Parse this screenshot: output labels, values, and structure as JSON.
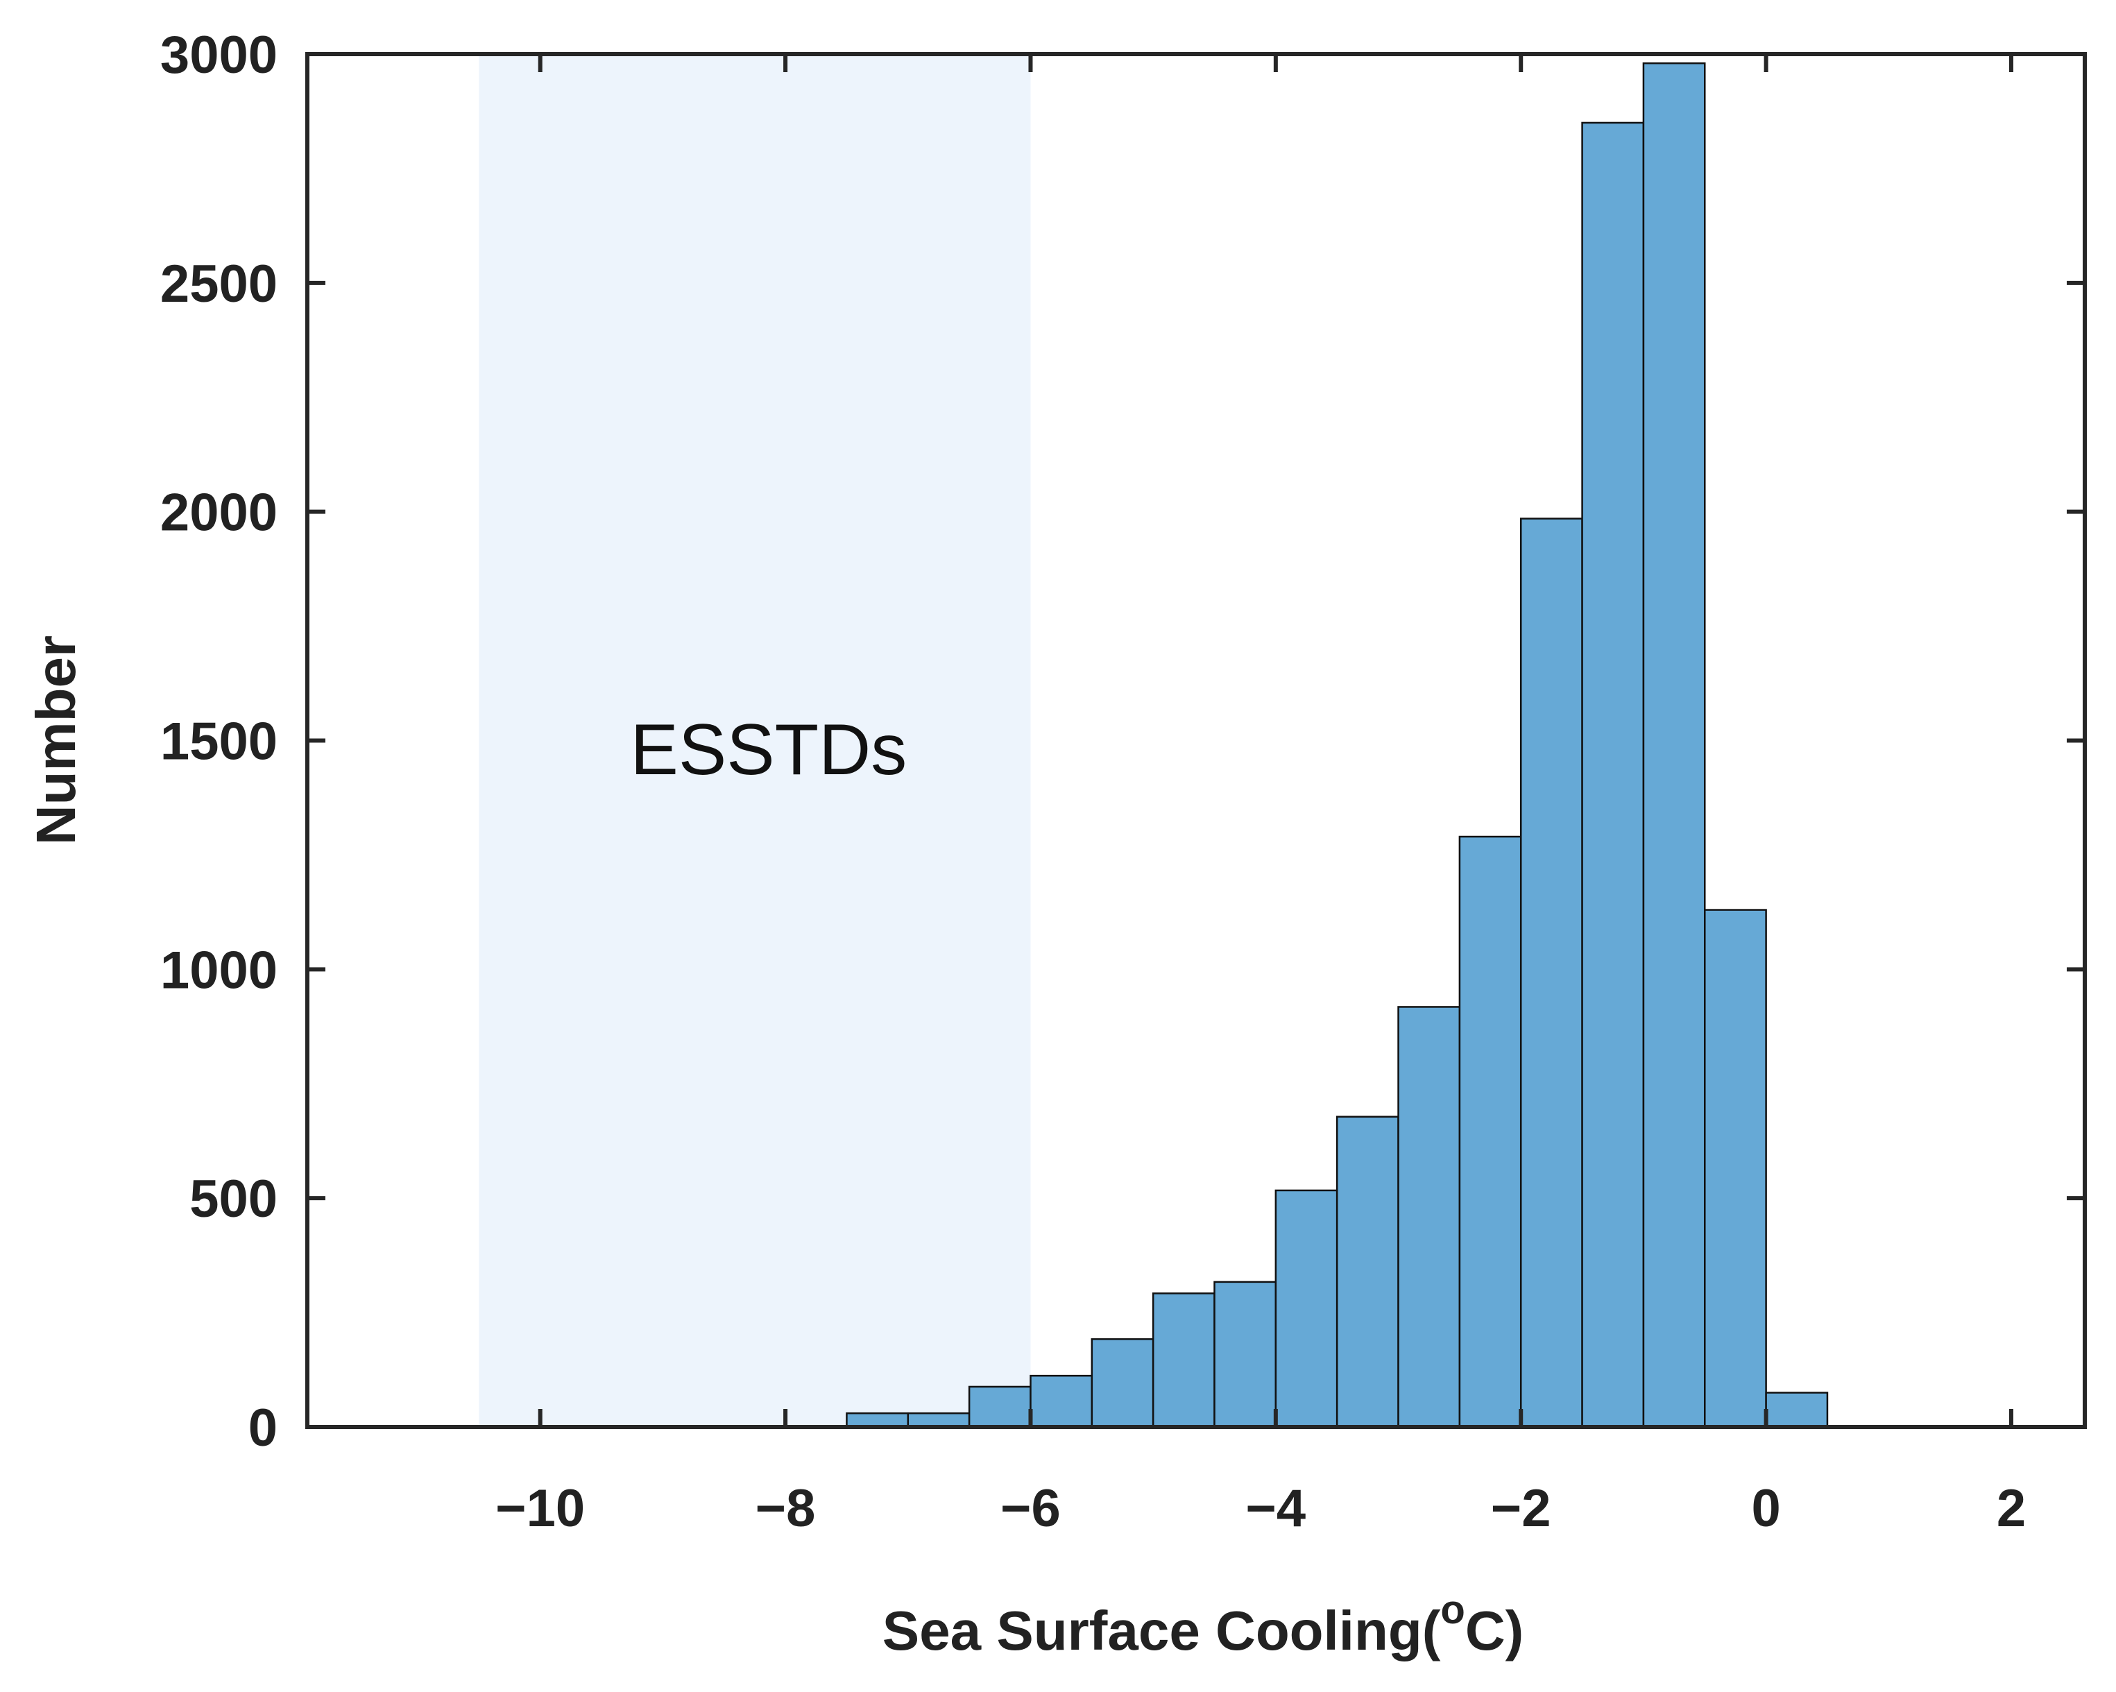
{
  "chart_data": {
    "type": "bar",
    "subtype": "histogram",
    "title": "",
    "xlabel": "Sea Surface Cooling(",
    "xlabel_sup": "o",
    "xlabel_end": "C)",
    "ylabel": "Number",
    "xlim": [
      -11.9,
      2.6
    ],
    "ylim": [
      0,
      3000
    ],
    "xticks": [
      -10,
      -8,
      -6,
      -4,
      -2,
      0,
      2
    ],
    "xtick_labels": [
      "−10",
      "−8",
      "−6",
      "−4",
      "−2",
      "0",
      "2"
    ],
    "yticks": [
      0,
      500,
      1000,
      1500,
      2000,
      2500,
      3000
    ],
    "ytick_labels": [
      "0",
      "500",
      "1000",
      "1500",
      "2000",
      "2500",
      "3000"
    ],
    "bin_width": 0.5,
    "bin_edges": [
      -7.5,
      -7.0,
      -6.5,
      -6.0,
      -5.5,
      -5.0,
      -4.5,
      -4.0,
      -3.5,
      -3.0,
      -2.5,
      -2.0,
      -1.5,
      -1.0,
      -0.5,
      0.0,
      0.5
    ],
    "values": [
      30,
      30,
      88,
      112,
      192,
      292,
      317,
      517,
      678,
      918,
      1290,
      1985,
      2850,
      2980,
      1130,
      75
    ],
    "bar_color": "#66a9d6",
    "bar_edge_color": "#111111",
    "shaded_region": {
      "x": [
        -10.5,
        -6.0
      ],
      "color": "#edf4fc",
      "label": "ESSTDs"
    },
    "grid": false
  }
}
